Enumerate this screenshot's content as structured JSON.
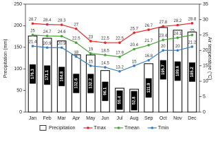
{
  "chart_data": {
    "type": "bar",
    "categories": [
      "Jan",
      "Feb",
      "Mar",
      "Apr",
      "May",
      "Jun",
      "Jul",
      "Aug",
      "Sep",
      "Oct",
      "Nov",
      "Dec"
    ],
    "y_label": "Precipitation (mm)",
    "y2_label": "Air temperature (°C)",
    "ylim": [
      0,
      250
    ],
    "yticks": [
      0,
      50,
      100,
      150,
      200,
      250
    ],
    "y2lim": [
      0,
      35
    ],
    "y2ticks": [
      0,
      5,
      10,
      15,
      20,
      25,
      30,
      35
    ],
    "legend": "bottom",
    "series": [
      {
        "name": "Precipitation",
        "type": "bar",
        "color": "#ffffff",
        "values": [
          176.3,
          171.1,
          164.8,
          132.6,
          132.2,
          96.1,
          55.4,
          52.8,
          111.9,
          195.7,
          189.6,
          185.2
        ]
      },
      {
        "name": "Tmax",
        "type": "line",
        "axis": "y2",
        "color": "#e8262a",
        "values": [
          28.7,
          28.4,
          28.3,
          27,
          23,
          22.5,
          22.5,
          25.7,
          26.7,
          27.8,
          28.2,
          28.8
        ]
      },
      {
        "name": "Tmean",
        "type": "line",
        "axis": "y2",
        "color": "#4aa23a",
        "values": [
          25,
          24.7,
          24.6,
          22.5,
          19,
          18.5,
          17.9,
          20.4,
          21.7,
          23.4,
          24.1,
          25
        ]
      },
      {
        "name": "Tmin",
        "type": "line",
        "axis": "y2",
        "color": "#3a7fc4",
        "values": [
          21.4,
          20.9,
          20.9,
          18,
          15,
          14.5,
          13.2,
          15,
          16.8,
          20,
          20,
          21.2
        ]
      }
    ]
  }
}
